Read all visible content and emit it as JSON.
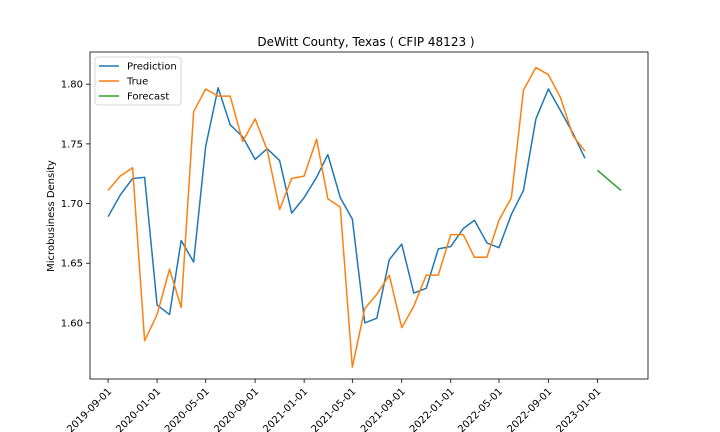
{
  "chart_data": {
    "type": "line",
    "title": "DeWitt County, Texas ( CFIP 48123 )",
    "xlabel": "",
    "ylabel": "Microbusiness Density",
    "ylim": [
      1.553,
      1.827
    ],
    "xlim": [
      "2019-07-18",
      "2023-05-07"
    ],
    "legend_position": "top-left",
    "grid": false,
    "x_ticks": [
      "2019-09-01",
      "2020-01-01",
      "2020-05-01",
      "2020-09-01",
      "2021-01-01",
      "2021-05-01",
      "2021-09-01",
      "2022-01-01",
      "2022-05-01",
      "2022-09-01",
      "2023-01-01"
    ],
    "y_ticks": [
      "1.60",
      "1.65",
      "1.70",
      "1.75",
      "1.80"
    ],
    "y_tick_values": [
      1.6,
      1.65,
      1.7,
      1.75,
      1.8
    ],
    "series": [
      {
        "name": "Prediction",
        "color": "#1f77b4",
        "x": [
          "2019-09-01",
          "2019-10-01",
          "2019-11-01",
          "2019-12-01",
          "2020-01-01",
          "2020-02-01",
          "2020-03-01",
          "2020-04-01",
          "2020-05-01",
          "2020-06-01",
          "2020-07-01",
          "2020-08-01",
          "2020-09-01",
          "2020-10-01",
          "2020-11-01",
          "2020-12-01",
          "2021-01-01",
          "2021-02-01",
          "2021-03-01",
          "2021-04-01",
          "2021-05-01",
          "2021-06-01",
          "2021-07-01",
          "2021-08-01",
          "2021-09-01",
          "2021-10-01",
          "2021-11-01",
          "2021-12-01",
          "2022-01-01",
          "2022-02-01",
          "2022-03-01",
          "2022-04-01",
          "2022-05-01",
          "2022-06-01",
          "2022-07-01",
          "2022-08-01",
          "2022-09-01",
          "2022-10-01",
          "2022-11-01",
          "2022-12-01"
        ],
        "values": [
          1.689,
          1.707,
          1.721,
          1.722,
          1.615,
          1.607,
          1.669,
          1.651,
          1.748,
          1.797,
          1.766,
          1.756,
          1.737,
          1.746,
          1.736,
          1.692,
          1.705,
          1.722,
          1.741,
          1.705,
          1.687,
          1.6,
          1.604,
          1.653,
          1.666,
          1.625,
          1.629,
          1.662,
          1.664,
          1.679,
          1.686,
          1.667,
          1.663,
          1.691,
          1.711,
          1.771,
          1.796,
          1.778,
          1.759,
          1.738
        ]
      },
      {
        "name": "True",
        "color": "#ff7f0e",
        "x": [
          "2019-09-01",
          "2019-10-01",
          "2019-11-01",
          "2019-12-01",
          "2020-01-01",
          "2020-02-01",
          "2020-03-01",
          "2020-04-01",
          "2020-05-01",
          "2020-06-01",
          "2020-07-01",
          "2020-08-01",
          "2020-09-01",
          "2020-10-01",
          "2020-11-01",
          "2020-12-01",
          "2021-01-01",
          "2021-02-01",
          "2021-03-01",
          "2021-04-01",
          "2021-05-01",
          "2021-06-01",
          "2021-07-01",
          "2021-08-01",
          "2021-09-01",
          "2021-10-01",
          "2021-11-01",
          "2021-12-01",
          "2022-01-01",
          "2022-02-01",
          "2022-03-01",
          "2022-04-01",
          "2022-05-01",
          "2022-06-01",
          "2022-07-01",
          "2022-08-01",
          "2022-09-01",
          "2022-10-01",
          "2022-11-01",
          "2022-12-01"
        ],
        "values": [
          1.711,
          1.723,
          1.73,
          1.585,
          1.607,
          1.645,
          1.613,
          1.777,
          1.796,
          1.79,
          1.79,
          1.752,
          1.771,
          1.745,
          1.695,
          1.721,
          1.723,
          1.754,
          1.704,
          1.697,
          1.563,
          1.612,
          1.624,
          1.64,
          1.596,
          1.614,
          1.64,
          1.64,
          1.674,
          1.674,
          1.655,
          1.655,
          1.686,
          1.705,
          1.795,
          1.814,
          1.808,
          1.789,
          1.757,
          1.744
        ]
      },
      {
        "name": "Forecast",
        "color": "#2ca02c",
        "x": [
          "2023-01-01",
          "2023-02-01",
          "2023-03-01"
        ],
        "values": [
          1.728,
          1.719,
          1.711
        ]
      }
    ]
  }
}
